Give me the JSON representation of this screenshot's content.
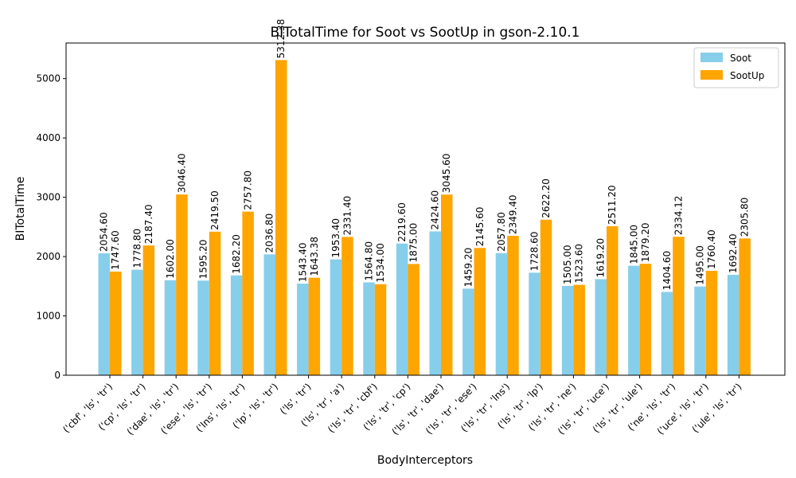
{
  "chart_data": {
    "type": "bar",
    "title": "BITotalTime for Soot vs SootUp in gson-2.10.1",
    "xlabel": "BodyInterceptors",
    "ylabel": "BITotalTime",
    "ylim": [
      0,
      5600
    ],
    "yticks": [
      0,
      1000,
      2000,
      3000,
      4000,
      5000
    ],
    "grid": false,
    "legend_position": "top-right",
    "categories": [
      "('cbf', 'ls', 'tr')",
      "('cp', 'ls', 'tr')",
      "('dae', 'ls', 'tr')",
      "('ese', 'ls', 'tr')",
      "('lns', 'ls', 'tr')",
      "('lp', 'ls', 'tr')",
      "('ls', 'tr')",
      "('ls', 'tr', 'a')",
      "('ls', 'tr', 'cbf')",
      "('ls', 'tr', 'cp')",
      "('ls', 'tr', 'dae')",
      "('ls', 'tr', 'ese')",
      "('ls', 'tr', 'lns')",
      "('ls', 'tr', 'lp')",
      "('ls', 'tr', 'ne')",
      "('ls', 'tr', 'uce')",
      "('ls', 'tr', 'ule')",
      "('ne', 'ls', 'tr')",
      "('uce', 'ls', 'tr')",
      "('ule', 'ls', 'tr')"
    ],
    "series": [
      {
        "name": "Soot",
        "color": "#87CEEB",
        "values": [
          2054.6,
          1778.8,
          1602.0,
          1595.2,
          1682.2,
          2036.8,
          1543.4,
          1953.4,
          1564.8,
          2219.6,
          2424.6,
          1459.2,
          2057.8,
          1728.6,
          1505.0,
          1619.2,
          1845.0,
          1404.6,
          1495.0,
          1692.4
        ],
        "labels": [
          "2054.60",
          "1778.80",
          "1602.00",
          "1595.20",
          "1682.20",
          "2036.80",
          "1543.40",
          "1953.40",
          "1564.80",
          "2219.60",
          "2424.60",
          "1459.20",
          "2057.80",
          "1728.60",
          "1505.00",
          "1619.20",
          "1845.00",
          "1404.60",
          "1495.00",
          "1692.40"
        ]
      },
      {
        "name": "SootUp",
        "color": "#FFA500",
        "values": [
          1747.6,
          2187.4,
          3046.4,
          2419.5,
          2757.8,
          5312.38,
          1643.38,
          2331.4,
          1534.0,
          1875.0,
          3045.6,
          2145.6,
          2349.4,
          2622.2,
          1523.6,
          2511.2,
          1879.2,
          2334.12,
          1760.4,
          2305.8
        ],
        "labels": [
          "1747.60",
          "2187.40",
          "3046.40",
          "2419.50",
          "2757.80",
          "5312.38",
          "1643.38",
          "2331.40",
          "1534.00",
          "1875.00",
          "3045.60",
          "2145.60",
          "2349.40",
          "2622.20",
          "1523.60",
          "2511.20",
          "1879.20",
          "2334.12",
          "1760.40",
          "2305.80"
        ]
      }
    ]
  }
}
